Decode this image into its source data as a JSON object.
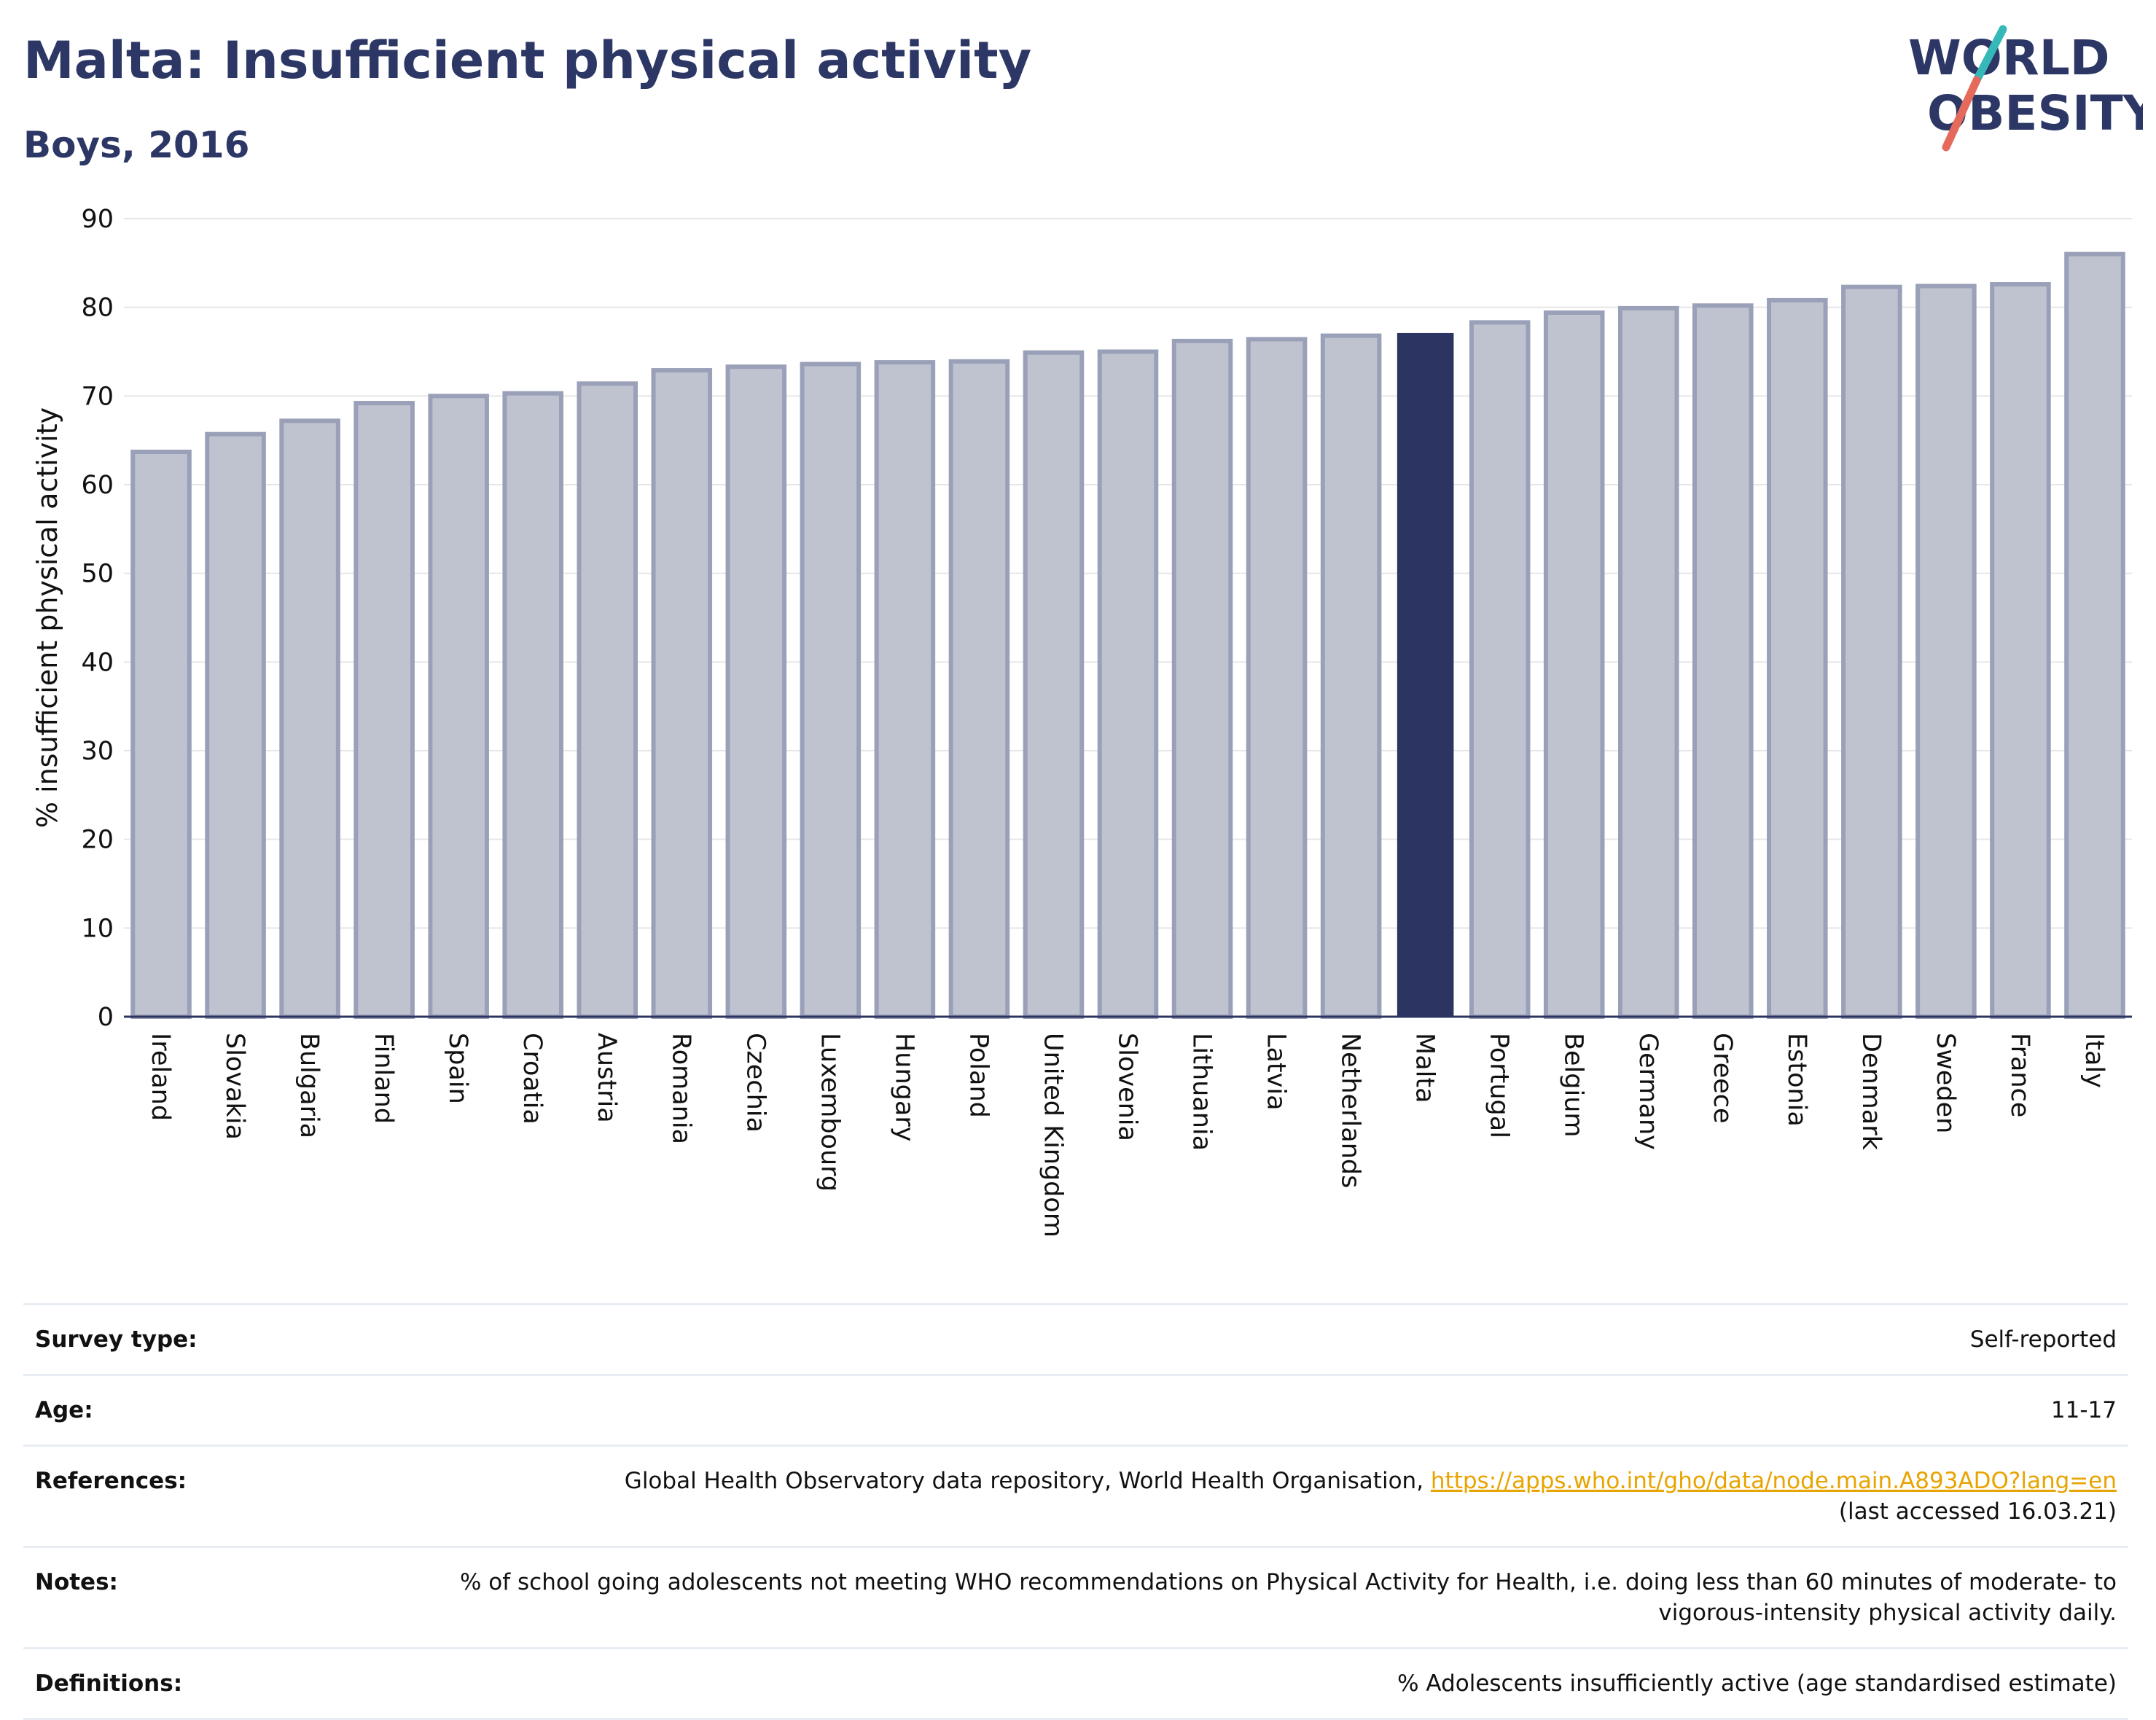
{
  "header": {
    "title": "Malta: Insufficient physical activity",
    "subtitle": "Boys, 2016",
    "logo_line1": "WORLD",
    "logo_line2": "OBESITY"
  },
  "chart_data": {
    "type": "bar",
    "title": "Malta: Insufficient physical activity",
    "subtitle": "Boys, 2016",
    "ylabel": "% insufficient physical activity",
    "xlabel": "",
    "ylim": [
      0,
      90
    ],
    "yticks": [
      0,
      10,
      20,
      30,
      40,
      50,
      60,
      70,
      80,
      90
    ],
    "grid": true,
    "highlight": "Malta",
    "colors": {
      "bar": "#bfc3d0",
      "bar_edge": "#9aa0b8",
      "highlight": "#2c3561",
      "grid": "#e6e6e6"
    },
    "categories": [
      "Ireland",
      "Slovakia",
      "Bulgaria",
      "Finland",
      "Spain",
      "Croatia",
      "Austria",
      "Romania",
      "Czechia",
      "Luxembourg",
      "Hungary",
      "Poland",
      "United Kingdom",
      "Slovenia",
      "Lithuania",
      "Latvia",
      "Netherlands",
      "Malta",
      "Portugal",
      "Belgium",
      "Germany",
      "Greece",
      "Estonia",
      "Denmark",
      "Sweden",
      "France",
      "Italy"
    ],
    "values": [
      63.7,
      65.7,
      67.2,
      69.2,
      70.0,
      70.3,
      71.4,
      72.9,
      73.3,
      73.6,
      73.8,
      73.9,
      74.9,
      75.0,
      76.2,
      76.4,
      76.8,
      77.1,
      78.3,
      79.4,
      79.9,
      80.2,
      80.8,
      82.3,
      82.4,
      82.6,
      86.0
    ]
  },
  "info": {
    "survey_label": "Survey type:",
    "survey_value": "Self-reported",
    "age_label": "Age:",
    "age_value": "11-17",
    "references_label": "References:",
    "references_text": "Global Health Observatory data repository, World Health Organisation, ",
    "references_link": "https://apps.who.int/gho/data/node.main.A893ADO?lang=en",
    "references_accessed": "(last accessed 16.03.21)",
    "notes_label": "Notes:",
    "notes_value": "% of school going adolescents not meeting WHO recommendations on Physical Activity for Health, i.e. doing less than 60 minutes of moderate- to vigorous-intensity physical activity daily.",
    "definitions_label": "Definitions:",
    "definitions_value": "% Adolescents insufficiently active (age standardised estimate)"
  }
}
